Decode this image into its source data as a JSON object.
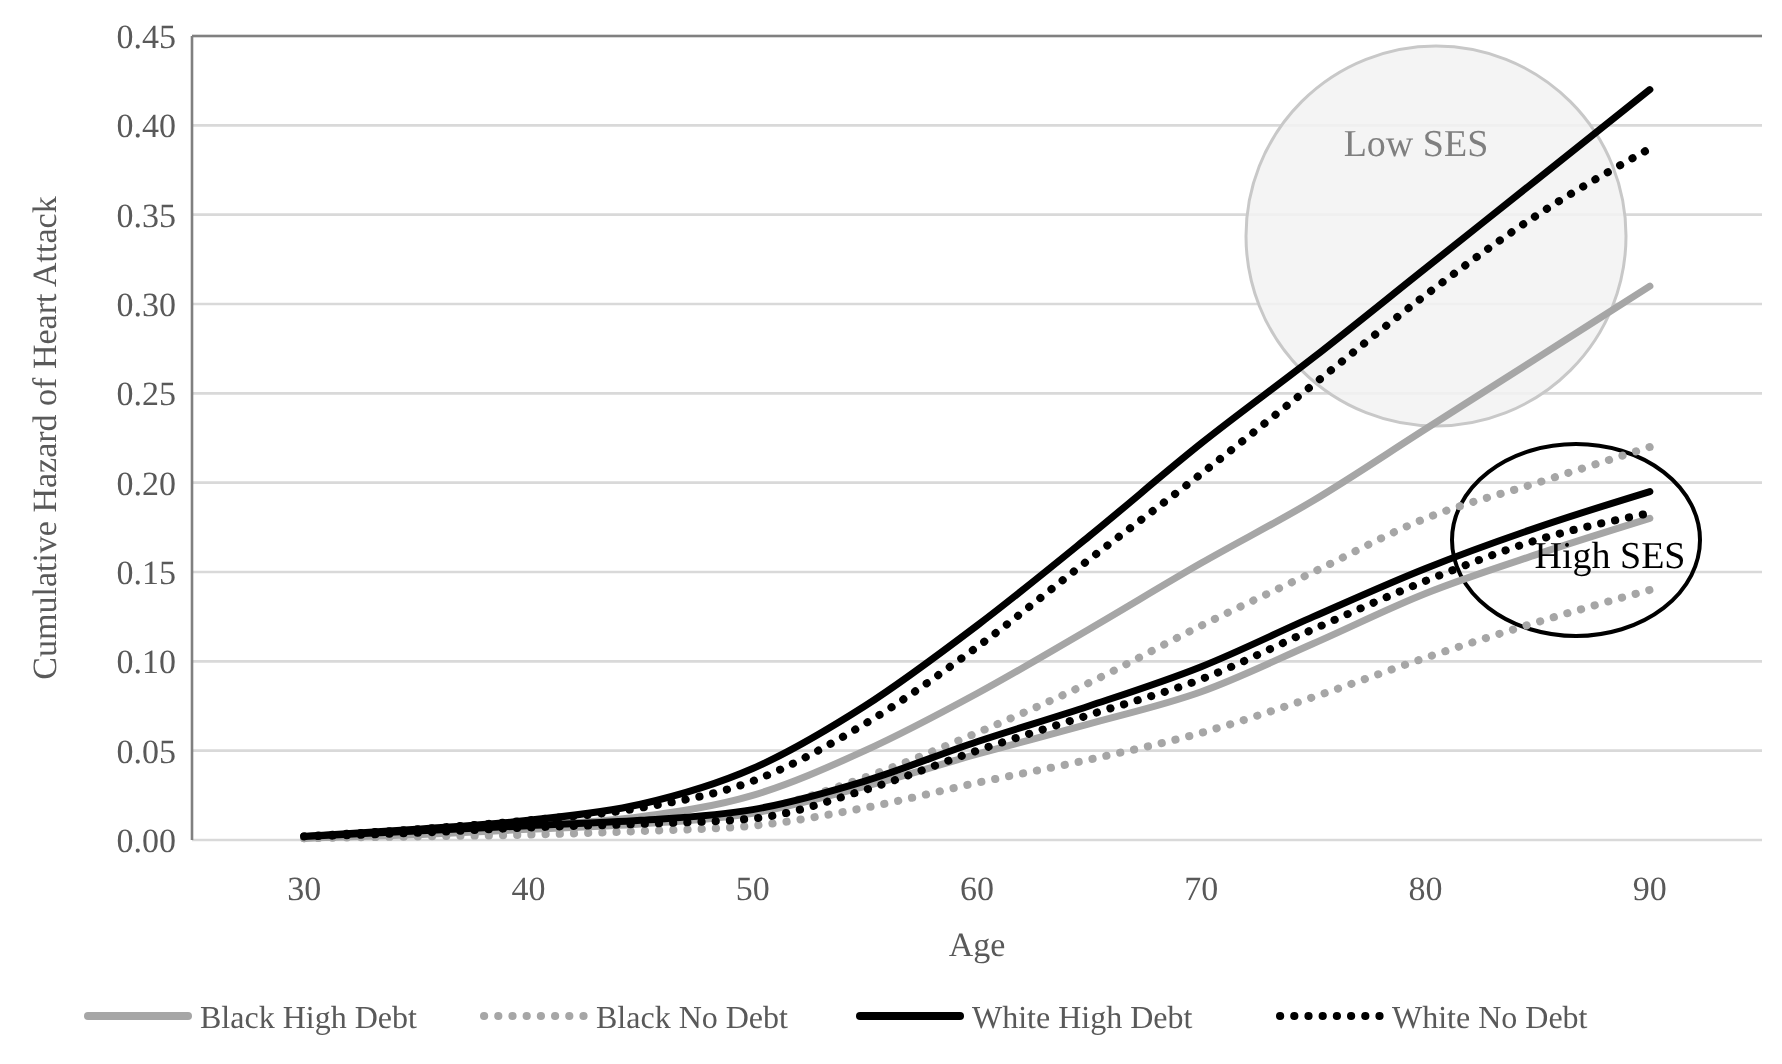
{
  "chart_data": {
    "type": "line",
    "xlabel": "Age",
    "ylabel": "Cumulative Hazard of Heart Attack",
    "x": [
      30,
      35,
      40,
      45,
      50,
      55,
      60,
      65,
      70,
      75,
      80,
      85,
      90
    ],
    "xlim": [
      25,
      95
    ],
    "xticks": [
      30,
      40,
      50,
      60,
      70,
      80,
      90
    ],
    "ylim": [
      0,
      0.45
    ],
    "yticks": [
      {
        "value": 0,
        "label": "0.00"
      },
      {
        "value": 0.05,
        "label": "0.05"
      },
      {
        "value": 0.1,
        "label": "0.10"
      },
      {
        "value": 0.15,
        "label": "0.15"
      },
      {
        "value": 0.2,
        "label": "0.20"
      },
      {
        "value": 0.25,
        "label": "0.25"
      },
      {
        "value": 0.3,
        "label": "0.30"
      },
      {
        "value": 0.35,
        "label": "0.35"
      },
      {
        "value": 0.4,
        "label": "0.40"
      },
      {
        "value": 0.45,
        "label": "0.45"
      }
    ],
    "grid": "y",
    "legend": "bottom",
    "marker": "none",
    "series": [
      {
        "name": "Black High Debt",
        "color": "#a6a6a6",
        "line_style": "solid",
        "values": [
          0.001,
          0.004,
          0.008,
          0.013,
          0.025,
          0.05,
          0.082,
          0.118,
          0.155,
          0.19,
          0.23,
          0.27,
          0.31
        ]
      },
      {
        "name": "Black No Debt",
        "color": "#a6a6a6",
        "line_style": "dotted",
        "values": [
          0.001,
          0.003,
          0.005,
          0.009,
          0.016,
          0.035,
          0.06,
          0.088,
          0.12,
          0.15,
          0.18,
          0.2,
          0.22
        ]
      },
      {
        "name": "White High Debt",
        "color": "#000000",
        "line_style": "solid",
        "values": [
          0.002,
          0.006,
          0.011,
          0.02,
          0.04,
          0.075,
          0.12,
          0.17,
          0.222,
          0.27,
          0.32,
          0.37,
          0.42
        ]
      },
      {
        "name": "White No Debt",
        "color": "#000000",
        "line_style": "dotted",
        "values": [
          0.002,
          0.006,
          0.011,
          0.018,
          0.033,
          0.065,
          0.108,
          0.157,
          0.205,
          0.255,
          0.305,
          0.35,
          0.387
        ]
      },
      {
        "color": "#a6a6a6",
        "line_style": "solid",
        "values": [
          0.001,
          0.003,
          0.006,
          0.009,
          0.015,
          0.03,
          0.048,
          0.065,
          0.083,
          0.11,
          0.138,
          0.16,
          0.18
        ]
      },
      {
        "color": "#a6a6a6",
        "line_style": "dotted",
        "values": [
          0.001,
          0.002,
          0.003,
          0.005,
          0.008,
          0.018,
          0.032,
          0.045,
          0.06,
          0.08,
          0.102,
          0.122,
          0.14
        ]
      },
      {
        "color": "#000000",
        "line_style": "solid",
        "values": [
          0.002,
          0.005,
          0.008,
          0.011,
          0.017,
          0.033,
          0.055,
          0.075,
          0.097,
          0.125,
          0.152,
          0.175,
          0.195
        ]
      },
      {
        "color": "#000000",
        "line_style": "dotted",
        "values": [
          0.002,
          0.004,
          0.007,
          0.009,
          0.012,
          0.028,
          0.05,
          0.07,
          0.09,
          0.118,
          0.145,
          0.168,
          0.183
        ]
      }
    ],
    "annotations": [
      "Low SES",
      "High SES"
    ]
  }
}
